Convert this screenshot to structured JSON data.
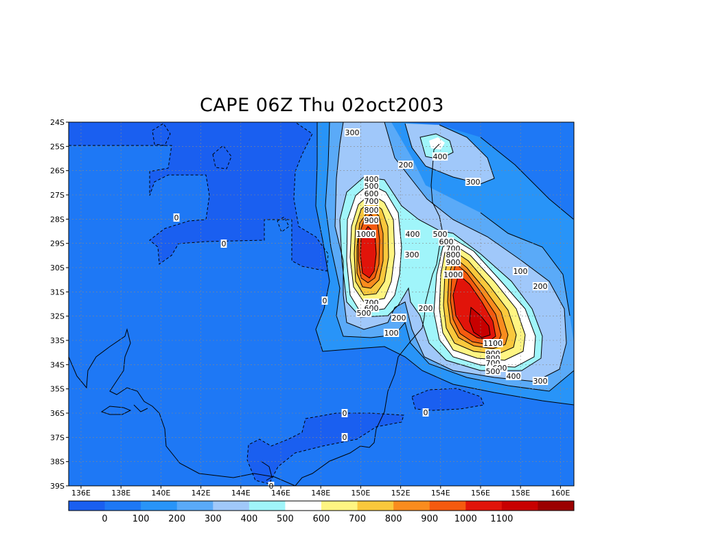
{
  "title": "CAPE 06Z Thu 02oct2003",
  "lat_ticks": [
    "24S",
    "25S",
    "26S",
    "27S",
    "28S",
    "29S",
    "30S",
    "31S",
    "32S",
    "33S",
    "34S",
    "35S",
    "36S",
    "37S",
    "38S",
    "39S"
  ],
  "lon_ticks": [
    "136E",
    "138E",
    "140E",
    "142E",
    "144E",
    "146E",
    "148E",
    "150E",
    "152E",
    "154E",
    "156E",
    "158E",
    "160E"
  ],
  "colorbar": {
    "labels": [
      "0",
      "100",
      "200",
      "300",
      "400",
      "500",
      "600",
      "700",
      "800",
      "900",
      "1000",
      "1100"
    ],
    "colors": [
      "#1a5ff0",
      "#1e78f5",
      "#2894f8",
      "#5aaaf8",
      "#a0c8fa",
      "#a0f5fa",
      "#ffffff",
      "#fff582",
      "#fac83c",
      "#fa8c1e",
      "#f55a0f",
      "#e1140a",
      "#c80000",
      "#9b0000"
    ]
  },
  "contour_labels": [
    {
      "text": "300"
    },
    {
      "text": "200"
    },
    {
      "text": "400"
    },
    {
      "text": "300"
    },
    {
      "text": "400"
    },
    {
      "text": "500"
    },
    {
      "text": "600"
    },
    {
      "text": "700"
    },
    {
      "text": "800"
    },
    {
      "text": "900"
    },
    {
      "text": "1000"
    },
    {
      "text": "0"
    },
    {
      "text": "0"
    },
    {
      "text": "0"
    },
    {
      "text": "400"
    },
    {
      "text": "300"
    },
    {
      "text": "500"
    },
    {
      "text": "600"
    },
    {
      "text": "700"
    },
    {
      "text": "800"
    },
    {
      "text": "900"
    },
    {
      "text": "1000"
    },
    {
      "text": "100"
    },
    {
      "text": "200"
    },
    {
      "text": "700"
    },
    {
      "text": "600"
    },
    {
      "text": "500"
    },
    {
      "text": "200"
    },
    {
      "text": "100"
    },
    {
      "text": "200"
    },
    {
      "text": "1100"
    },
    {
      "text": "900"
    },
    {
      "text": "800"
    },
    {
      "text": "700"
    },
    {
      "text": "600"
    },
    {
      "text": "500"
    },
    {
      "text": "400"
    },
    {
      "text": "300"
    },
    {
      "text": "0"
    },
    {
      "text": "0"
    },
    {
      "text": "0"
    },
    {
      "text": "0"
    }
  ]
}
